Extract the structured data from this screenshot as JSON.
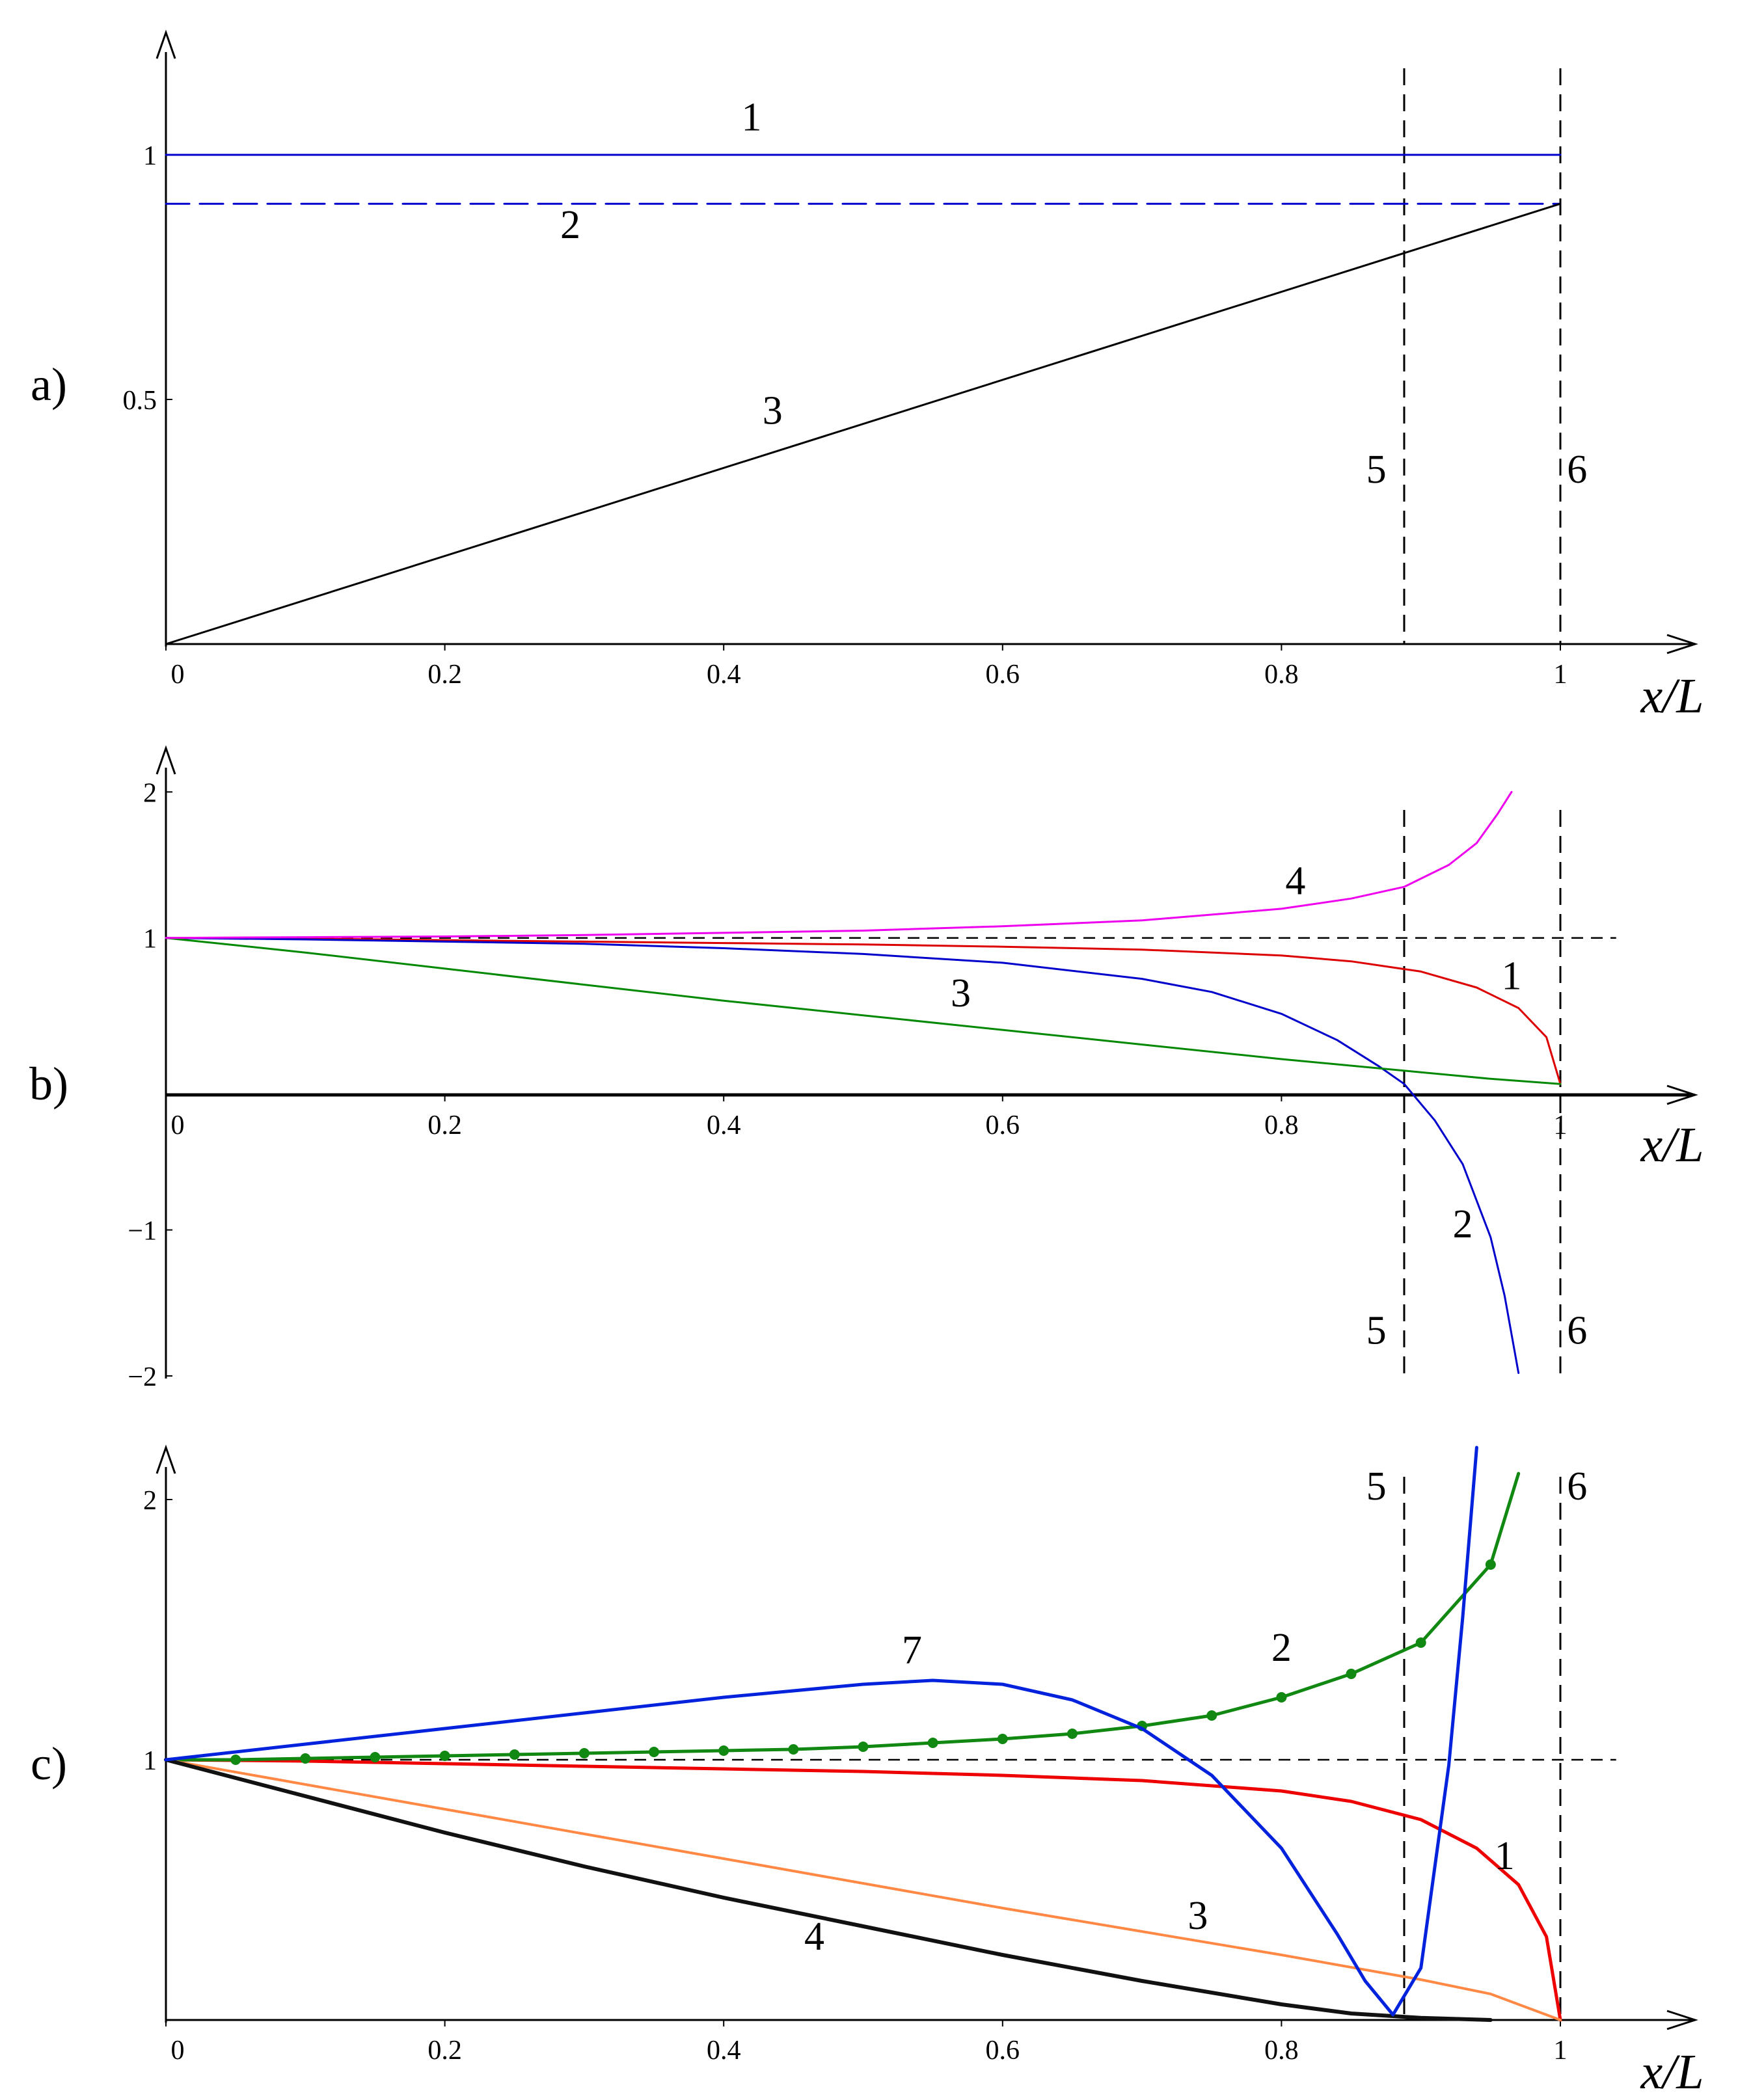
{
  "chart_data": [
    {
      "panel": "a)",
      "type": "line",
      "xlabel": "x/L",
      "xlim": [
        0,
        1
      ],
      "ylim": [
        0,
        1.25
      ],
      "x_ticks": [
        "0",
        "0.2",
        "0.4",
        "0.6",
        "0.8",
        "1"
      ],
      "y_ticks": [
        {
          "value": 0.5,
          "label": "0.5"
        },
        {
          "value": 1,
          "label": "1"
        }
      ],
      "series": [
        {
          "name": "1",
          "color": "#0000cc",
          "dash": "solid",
          "x": [
            0,
            1
          ],
          "y": [
            1,
            1
          ]
        },
        {
          "name": "2",
          "color": "#0000cc",
          "dash": "dashed",
          "x": [
            0,
            1
          ],
          "y": [
            0.9,
            0.9
          ]
        },
        {
          "name": "3",
          "color": "#000000",
          "dash": "solid",
          "x": [
            0,
            1
          ],
          "y": [
            0,
            0.9
          ]
        }
      ],
      "vlines": [
        {
          "name": "5",
          "x": 0.888
        },
        {
          "name": "6",
          "x": 1
        }
      ],
      "labels": [
        {
          "text": "1",
          "x": 0.42,
          "y": 1.05
        },
        {
          "text": "2",
          "x": 0.29,
          "y": 0.83
        },
        {
          "text": "3",
          "x": 0.435,
          "y": 0.45
        },
        {
          "text": "5",
          "x": 0.868,
          "y": 0.33
        },
        {
          "text": "6",
          "x": 1.012,
          "y": 0.33
        }
      ]
    },
    {
      "panel": "b)",
      "type": "line",
      "xlabel": "x/L",
      "xlim": [
        0,
        1
      ],
      "ylim": [
        -2,
        2.3
      ],
      "x_ticks": [
        "0",
        "0.2",
        "0.4",
        "0.6",
        "0.8",
        "1"
      ],
      "y_ticks": [
        {
          "value": 2,
          "label": "2"
        },
        {
          "value": 1,
          "label": "1"
        },
        {
          "value": -1,
          "label": "−1"
        },
        {
          "value": -2,
          "label": "−2"
        }
      ],
      "hline": {
        "y": 1,
        "dash": "dashed"
      },
      "series": [
        {
          "name": "1",
          "color": "#dd0000",
          "x": [
            0,
            0.1,
            0.2,
            0.3,
            0.4,
            0.5,
            0.6,
            0.7,
            0.8,
            0.85,
            0.9,
            0.94,
            0.97,
            0.99,
            1
          ],
          "y": [
            1,
            0.995,
            0.985,
            0.975,
            0.965,
            0.955,
            0.94,
            0.92,
            0.88,
            0.84,
            0.77,
            0.66,
            0.52,
            0.32,
            0
          ]
        },
        {
          "name": "2",
          "color": "#0000cc",
          "x": [
            0,
            0.1,
            0.2,
            0.3,
            0.4,
            0.5,
            0.6,
            0.7,
            0.75,
            0.8,
            0.84,
            0.87,
            0.888,
            0.91,
            0.93,
            0.95,
            0.96,
            0.97
          ],
          "y": [
            1,
            0.99,
            0.975,
            0.96,
            0.93,
            0.89,
            0.83,
            0.72,
            0.63,
            0.48,
            0.3,
            0.12,
            0,
            -0.25,
            -0.55,
            -1.05,
            -1.45,
            -1.98
          ]
        },
        {
          "name": "3",
          "color": "#008800",
          "x": [
            0,
            0.1,
            0.2,
            0.3,
            0.4,
            0.5,
            0.6,
            0.7,
            0.8,
            0.9,
            0.95,
            1
          ],
          "y": [
            1,
            0.9,
            0.79,
            0.68,
            0.57,
            0.47,
            0.37,
            0.27,
            0.17,
            0.08,
            0.035,
            0
          ]
        },
        {
          "name": "4",
          "color": "#ee00ee",
          "x": [
            0,
            0.1,
            0.2,
            0.3,
            0.4,
            0.5,
            0.6,
            0.7,
            0.8,
            0.85,
            0.888,
            0.92,
            0.94,
            0.955,
            0.965
          ],
          "y": [
            1,
            1.005,
            1.01,
            1.02,
            1.035,
            1.05,
            1.08,
            1.12,
            1.2,
            1.27,
            1.35,
            1.5,
            1.65,
            1.85,
            2
          ]
        }
      ],
      "vlines": [
        {
          "name": "5",
          "x": 0.888
        },
        {
          "name": "6",
          "x": 1
        }
      ],
      "labels": [
        {
          "text": "4",
          "x": 0.81,
          "y": 1.3
        },
        {
          "text": "1",
          "x": 0.965,
          "y": 0.65
        },
        {
          "text": "3",
          "x": 0.57,
          "y": 0.53
        },
        {
          "text": "2",
          "x": 0.93,
          "y": -1.05
        },
        {
          "text": "5",
          "x": 0.868,
          "y": -1.78
        },
        {
          "text": "6",
          "x": 1.012,
          "y": -1.78
        }
      ]
    },
    {
      "panel": "c)",
      "type": "line",
      "xlabel": "x/L",
      "xlim": [
        0,
        1
      ],
      "ylim": [
        0,
        2.2
      ],
      "x_ticks": [
        "0",
        "0.2",
        "0.4",
        "0.6",
        "0.8",
        "1"
      ],
      "y_ticks": [
        {
          "value": 1,
          "label": "1"
        },
        {
          "value": 2,
          "label": "2"
        }
      ],
      "hline": {
        "y": 1,
        "dash": "dashed"
      },
      "series": [
        {
          "name": "1",
          "color": "#ee0000",
          "width": 5,
          "x": [
            0,
            0.1,
            0.2,
            0.3,
            0.4,
            0.5,
            0.6,
            0.7,
            0.8,
            0.85,
            0.9,
            0.94,
            0.97,
            0.99,
            1
          ],
          "y": [
            1,
            0.995,
            0.985,
            0.975,
            0.965,
            0.955,
            0.94,
            0.92,
            0.88,
            0.84,
            0.77,
            0.66,
            0.52,
            0.32,
            0
          ]
        },
        {
          "name": "2",
          "color": "#118811",
          "width": 5,
          "markers": true,
          "x": [
            0,
            0.05,
            0.1,
            0.15,
            0.2,
            0.25,
            0.3,
            0.35,
            0.4,
            0.45,
            0.5,
            0.55,
            0.6,
            0.65,
            0.7,
            0.75,
            0.8,
            0.85,
            0.9,
            0.95,
            0.97
          ],
          "y": [
            1,
            1,
            1.005,
            1.01,
            1.015,
            1.02,
            1.025,
            1.03,
            1.035,
            1.04,
            1.05,
            1.065,
            1.08,
            1.1,
            1.13,
            1.17,
            1.24,
            1.33,
            1.45,
            1.75,
            2.1
          ]
        },
        {
          "name": "3",
          "color": "#ff8844",
          "width": 4,
          "x": [
            0,
            0.1,
            0.2,
            0.3,
            0.4,
            0.5,
            0.6,
            0.7,
            0.8,
            0.9,
            0.95,
            1
          ],
          "y": [
            1,
            0.905,
            0.81,
            0.715,
            0.62,
            0.525,
            0.43,
            0.34,
            0.25,
            0.155,
            0.1,
            0
          ]
        },
        {
          "name": "4",
          "color": "#111111",
          "width": 6,
          "x": [
            0,
            0.1,
            0.2,
            0.3,
            0.4,
            0.5,
            0.6,
            0.7,
            0.8,
            0.85,
            0.9,
            0.95
          ],
          "y": [
            1,
            0.86,
            0.72,
            0.59,
            0.47,
            0.36,
            0.25,
            0.15,
            0.06,
            0.025,
            0.008,
            0
          ]
        },
        {
          "name": "7",
          "color": "#0022dd",
          "width": 5,
          "x": [
            0,
            0.1,
            0.2,
            0.3,
            0.4,
            0.5,
            0.55,
            0.6,
            0.65,
            0.7,
            0.75,
            0.8,
            0.84,
            0.86,
            0.88,
            0.9,
            0.92,
            0.93,
            0.94
          ],
          "y": [
            1,
            1.06,
            1.12,
            1.18,
            1.24,
            1.29,
            1.305,
            1.29,
            1.23,
            1.12,
            0.94,
            0.66,
            0.33,
            0.15,
            0.02,
            0.2,
            0.98,
            1.55,
            2.2
          ]
        }
      ],
      "vlines": [
        {
          "name": "5",
          "x": 0.888
        },
        {
          "name": "6",
          "x": 1
        }
      ],
      "labels": [
        {
          "text": "7",
          "x": 0.535,
          "y": 1.37
        },
        {
          "text": "2",
          "x": 0.8,
          "y": 1.38
        },
        {
          "text": "1",
          "x": 0.96,
          "y": 0.58
        },
        {
          "text": "3",
          "x": 0.74,
          "y": 0.35
        },
        {
          "text": "4",
          "x": 0.465,
          "y": 0.27
        },
        {
          "text": "5",
          "x": 0.868,
          "y": 2.0
        },
        {
          "text": "6",
          "x": 1.012,
          "y": 2.0
        }
      ]
    }
  ]
}
